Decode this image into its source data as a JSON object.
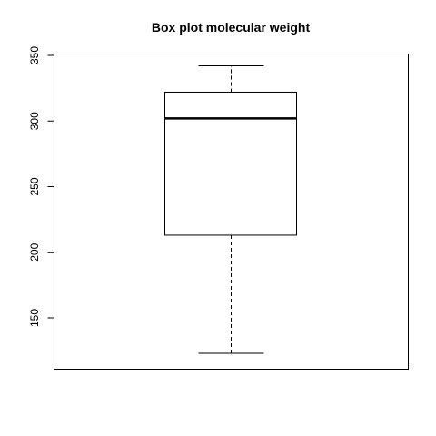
{
  "chart_data": {
    "type": "box",
    "title": "Box plot molecular weight",
    "xlabel": "",
    "ylabel": "",
    "ylim": [
      114,
      350
    ],
    "yticks": [
      150,
      200,
      250,
      300,
      350
    ],
    "ytick_labels": [
      "150",
      "200",
      "250",
      "300",
      "350"
    ],
    "grid": false,
    "legend": "none",
    "box": {
      "whisker_low": 123,
      "q1": 213,
      "median": 302,
      "q3": 322,
      "whisker_high": 342
    },
    "colors": {
      "stroke": "#000000",
      "background": "#ffffff"
    }
  }
}
